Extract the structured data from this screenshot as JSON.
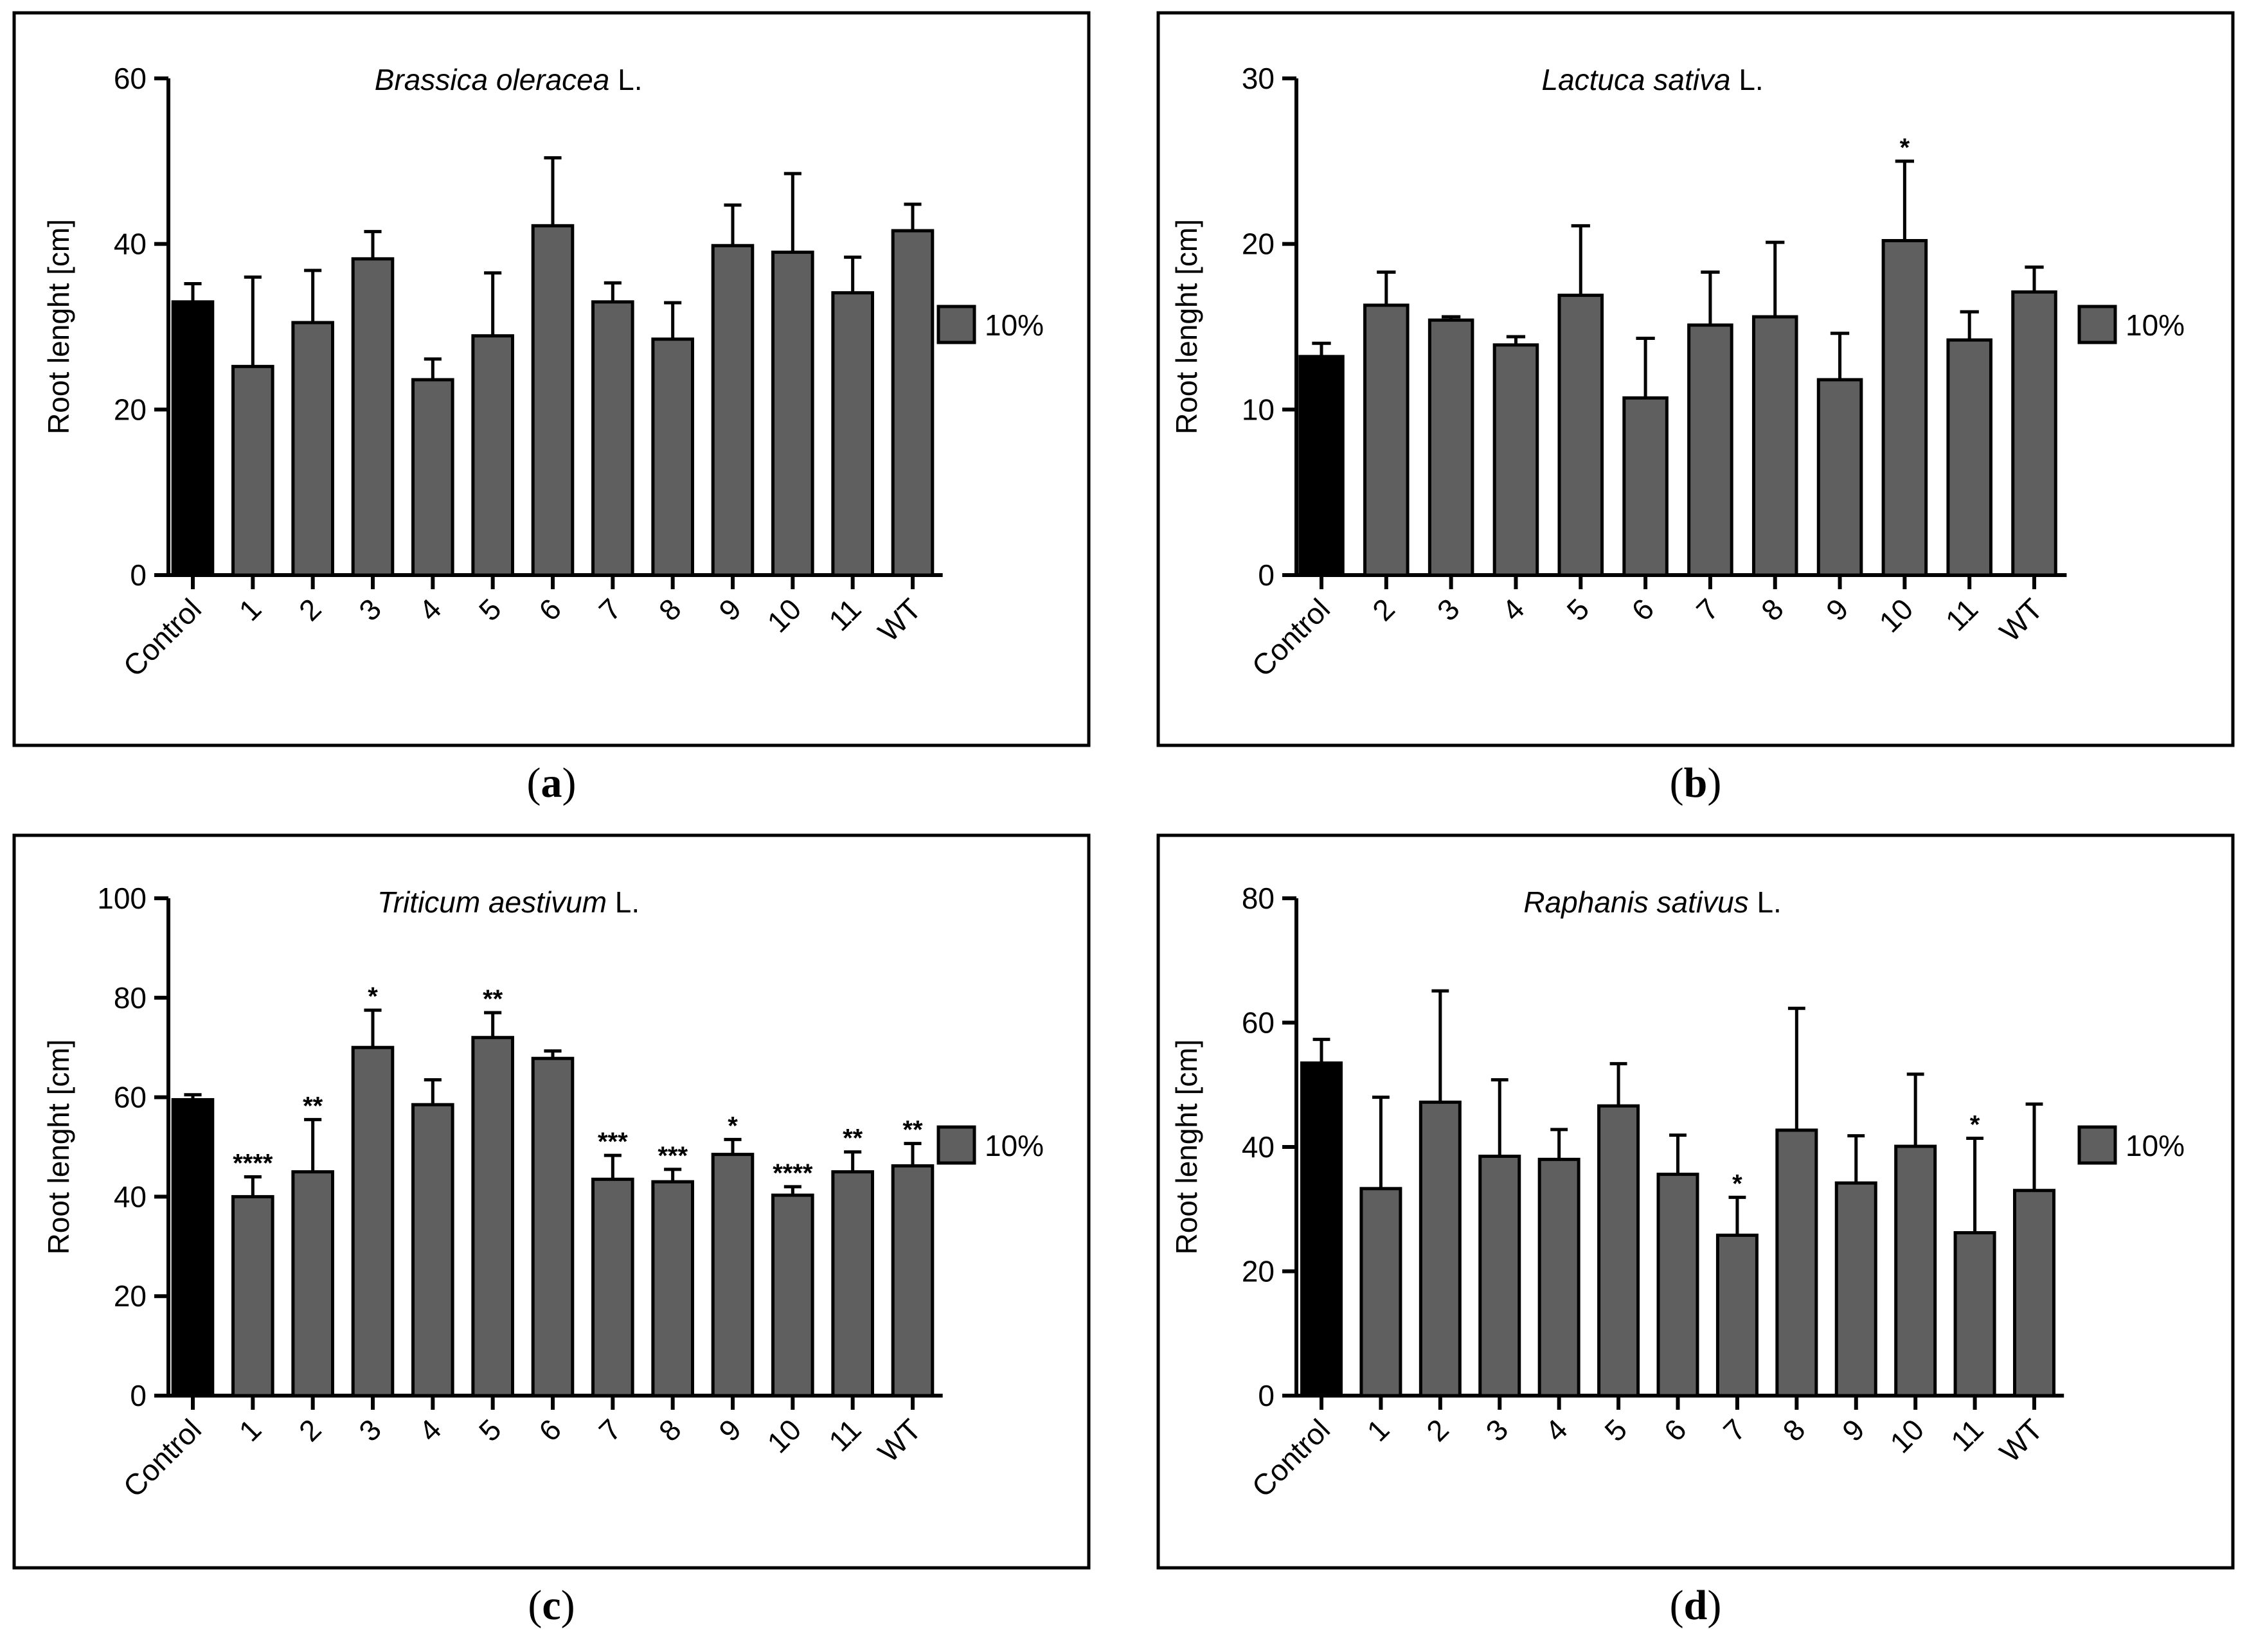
{
  "colors": {
    "control": "#000000",
    "treatment": "#5f5f5f"
  },
  "chart_data": [
    {
      "type": "bar",
      "panel": "(a)",
      "panel_letter": "a",
      "title_species": "Brassica oleracea",
      "title_suffix": " L.",
      "ylabel": "Root lenght [cm]",
      "ylim": [
        0,
        60
      ],
      "yticks": [
        0,
        20,
        40,
        60
      ],
      "legend": "10%",
      "categories": [
        "Control",
        "1",
        "2",
        "3",
        "4",
        "5",
        "6",
        "7",
        "8",
        "9",
        "10",
        "11",
        "WT"
      ],
      "values": [
        33,
        25.2,
        30.5,
        38.2,
        23.6,
        28.9,
        42.2,
        33,
        28.5,
        39.8,
        39,
        34.1,
        41.6
      ],
      "errors": [
        2.2,
        10.8,
        6.3,
        3.3,
        2.5,
        7.6,
        8.2,
        2.3,
        4.4,
        4.9,
        9.5,
        4.3,
        3.2
      ],
      "significance": [
        "",
        "",
        "",
        "",
        "",
        "",
        "",
        "",
        "",
        "",
        "",
        "",
        ""
      ]
    },
    {
      "type": "bar",
      "panel": "(b)",
      "panel_letter": "b",
      "title_species": "Lactuca sativa",
      "title_suffix": " L.",
      "ylabel": "Root lenght [cm]",
      "ylim": [
        0,
        30
      ],
      "yticks": [
        0,
        10,
        20,
        30
      ],
      "legend": "10%",
      "categories": [
        "Control",
        "2",
        "3",
        "4",
        "5",
        "6",
        "7",
        "8",
        "9",
        "10",
        "11",
        "WT"
      ],
      "values": [
        13.2,
        16.3,
        15.4,
        13.9,
        16.9,
        10.7,
        15.1,
        15.6,
        11.8,
        20.2,
        14.2,
        17.1
      ],
      "errors": [
        0.8,
        2,
        0.2,
        0.5,
        4.2,
        3.6,
        3.2,
        4.5,
        2.8,
        4.8,
        1.7,
        1.5
      ],
      "significance": [
        "",
        "",
        "",
        "",
        "",
        "",
        "",
        "",
        "",
        "*",
        "",
        ""
      ]
    },
    {
      "type": "bar",
      "panel": "(c)",
      "panel_letter": "c",
      "title_species": "Triticum aestivum",
      "title_suffix": " L.",
      "ylabel": "Root lenght [cm]",
      "ylim": [
        0,
        100
      ],
      "yticks": [
        0,
        20,
        40,
        60,
        80,
        100
      ],
      "legend": "10%",
      "categories": [
        "Control",
        "1",
        "2",
        "3",
        "4",
        "5",
        "6",
        "7",
        "8",
        "9",
        "10",
        "11",
        "WT"
      ],
      "values": [
        59.5,
        40,
        45,
        70,
        58.5,
        72,
        67.8,
        43.5,
        43,
        48.5,
        40.3,
        45,
        46.2
      ],
      "errors": [
        1,
        4,
        10.5,
        7.5,
        5,
        5,
        1.5,
        4.8,
        2.5,
        3,
        1.7,
        4,
        4.5
      ],
      "significance": [
        "",
        "****",
        "**",
        "*",
        "",
        "**",
        "",
        "***",
        "***",
        "*",
        "****",
        "**",
        "**"
      ]
    },
    {
      "type": "bar",
      "panel": "(d)",
      "panel_letter": "d",
      "title_species": "Raphanis sativus",
      "title_suffix": " L.",
      "ylabel": "Root lenght [cm]",
      "ylim": [
        0,
        80
      ],
      "yticks": [
        0,
        20,
        40,
        60,
        80
      ],
      "legend": "10%",
      "categories": [
        "Control",
        "1",
        "2",
        "3",
        "4",
        "5",
        "6",
        "7",
        "8",
        "9",
        "10",
        "11",
        "WT"
      ],
      "values": [
        53.5,
        33.3,
        47.2,
        38.5,
        38,
        46.6,
        35.6,
        25.8,
        42.7,
        34.2,
        40.1,
        26.2,
        33
      ],
      "errors": [
        3.8,
        14.7,
        17.9,
        12.3,
        4.8,
        6.8,
        6.3,
        6.1,
        19.6,
        7.6,
        11.6,
        15.2,
        13.9
      ],
      "significance": [
        "",
        "",
        "",
        "",
        "",
        "",
        "",
        "*",
        "",
        "",
        "",
        "*",
        ""
      ]
    }
  ]
}
